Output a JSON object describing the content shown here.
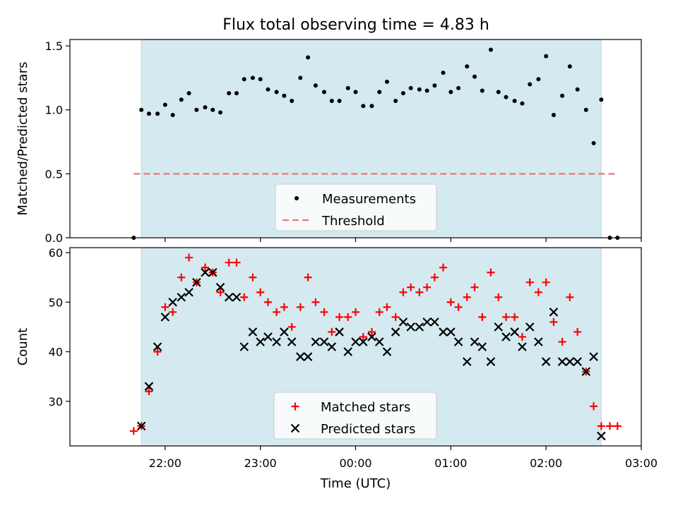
{
  "figure": {
    "title": "Flux total observing time = 4.83 h"
  },
  "chart_data": [
    {
      "type": "scatter",
      "panel": "top",
      "ylabel": "Matched/Predicted stars",
      "xlabel": "",
      "x_unit": "hours after 00:00 UTC",
      "xlim": [
        -3.0,
        3.0
      ],
      "ylim": [
        0.0,
        1.55
      ],
      "yticks": [
        0.0,
        0.5,
        1.0,
        1.5
      ],
      "ytick_labels": [
        "0.0",
        "0.5",
        "1.0",
        "1.5"
      ],
      "shaded_interval": {
        "x": [
          -2.25,
          2.58
        ],
        "color": "#d4eaf0"
      },
      "legend_position": "lower center",
      "series": [
        {
          "name": "Measurements",
          "marker": "dot",
          "color": "#000000",
          "x": [
            -2.33,
            -2.25,
            -2.17,
            -2.08,
            -2.0,
            -1.92,
            -1.83,
            -1.75,
            -1.67,
            -1.58,
            -1.5,
            -1.42,
            -1.33,
            -1.25,
            -1.17,
            -1.08,
            -1.0,
            -0.92,
            -0.83,
            -0.75,
            -0.67,
            -0.58,
            -0.5,
            -0.42,
            -0.33,
            -0.25,
            -0.17,
            -0.08,
            0.0,
            0.08,
            0.17,
            0.25,
            0.33,
            0.42,
            0.5,
            0.58,
            0.67,
            0.75,
            0.83,
            0.92,
            1.0,
            1.08,
            1.17,
            1.25,
            1.33,
            1.42,
            1.5,
            1.58,
            1.67,
            1.75,
            1.83,
            1.92,
            2.0,
            2.08,
            2.17,
            2.25,
            2.33,
            2.42,
            2.5,
            2.58,
            2.67,
            2.75
          ],
          "y": [
            0.0,
            1.0,
            0.97,
            0.97,
            1.04,
            0.96,
            1.08,
            1.13,
            1.0,
            1.02,
            1.0,
            0.98,
            1.13,
            1.13,
            1.24,
            1.25,
            1.24,
            1.16,
            1.14,
            1.11,
            1.07,
            1.25,
            1.41,
            1.19,
            1.14,
            1.07,
            1.07,
            1.17,
            1.14,
            1.03,
            1.03,
            1.14,
            1.22,
            1.07,
            1.13,
            1.17,
            1.16,
            1.15,
            1.19,
            1.29,
            1.14,
            1.17,
            1.34,
            1.26,
            1.15,
            1.47,
            1.14,
            1.1,
            1.07,
            1.05,
            1.2,
            1.24,
            1.42,
            0.96,
            1.11,
            1.34,
            1.16,
            1.0,
            0.74,
            1.08,
            0.0,
            0.0
          ]
        },
        {
          "name": "Threshold",
          "style": "dashed",
          "color": "#f07474",
          "x": [
            -2.33,
            2.75
          ],
          "y": [
            0.5,
            0.5
          ]
        }
      ]
    },
    {
      "type": "scatter",
      "panel": "bottom",
      "ylabel": "Count",
      "xlabel": "Time (UTC)",
      "x_unit": "hours after 00:00 UTC",
      "xlim": [
        -3.0,
        3.0
      ],
      "ylim": [
        21,
        61
      ],
      "xticks": [
        -2,
        -1,
        0,
        1,
        2,
        3
      ],
      "xtick_labels": [
        "22:00",
        "23:00",
        "00:00",
        "01:00",
        "02:00",
        "03:00"
      ],
      "yticks": [
        30,
        40,
        50,
        60
      ],
      "ytick_labels": [
        "30",
        "40",
        "50",
        "60"
      ],
      "shaded_interval": {
        "x": [
          -2.25,
          2.58
        ],
        "color": "#d4eaf0"
      },
      "legend_position": "lower center",
      "series": [
        {
          "name": "Matched stars",
          "marker": "plus",
          "color": "#ff0000",
          "x": [
            -2.33,
            -2.25,
            -2.17,
            -2.08,
            -2.0,
            -1.92,
            -1.83,
            -1.75,
            -1.67,
            -1.58,
            -1.5,
            -1.42,
            -1.33,
            -1.25,
            -1.17,
            -1.08,
            -1.0,
            -0.92,
            -0.83,
            -0.75,
            -0.67,
            -0.58,
            -0.5,
            -0.42,
            -0.33,
            -0.25,
            -0.17,
            -0.08,
            0.0,
            0.08,
            0.17,
            0.25,
            0.33,
            0.42,
            0.5,
            0.58,
            0.67,
            0.75,
            0.83,
            0.92,
            1.0,
            1.08,
            1.17,
            1.25,
            1.33,
            1.42,
            1.5,
            1.58,
            1.67,
            1.75,
            1.83,
            1.92,
            2.0,
            2.08,
            2.17,
            2.25,
            2.33,
            2.42,
            2.5,
            2.58,
            2.67,
            2.75
          ],
          "y": [
            24,
            25,
            32,
            40,
            49,
            48,
            55,
            59,
            54,
            57,
            56,
            52,
            58,
            58,
            51,
            55,
            52,
            50,
            48,
            49,
            45,
            49,
            55,
            50,
            48,
            44,
            47,
            47,
            48,
            43,
            44,
            48,
            49,
            47,
            52,
            53,
            52,
            53,
            55,
            57,
            50,
            49,
            51,
            53,
            47,
            56,
            51,
            47,
            47,
            43,
            54,
            52,
            54,
            46,
            42,
            51,
            44,
            36,
            29,
            25,
            25,
            25
          ]
        },
        {
          "name": "Predicted stars",
          "marker": "x",
          "color": "#000000",
          "x": [
            -2.25,
            -2.17,
            -2.08,
            -2.0,
            -1.92,
            -1.83,
            -1.75,
            -1.67,
            -1.58,
            -1.5,
            -1.42,
            -1.33,
            -1.25,
            -1.17,
            -1.08,
            -1.0,
            -0.92,
            -0.83,
            -0.75,
            -0.67,
            -0.58,
            -0.5,
            -0.42,
            -0.33,
            -0.25,
            -0.17,
            -0.08,
            0.0,
            0.08,
            0.17,
            0.25,
            0.33,
            0.42,
            0.5,
            0.58,
            0.67,
            0.75,
            0.83,
            0.92,
            1.0,
            1.08,
            1.17,
            1.25,
            1.33,
            1.42,
            1.5,
            1.58,
            1.67,
            1.75,
            1.83,
            1.92,
            2.0,
            2.08,
            2.17,
            2.25,
            2.33,
            2.42,
            2.5,
            2.58
          ],
          "y": [
            25,
            33,
            41,
            47,
            50,
            51,
            52,
            54,
            56,
            56,
            53,
            51,
            51,
            41,
            44,
            42,
            43,
            42,
            44,
            42,
            39,
            39,
            42,
            42,
            41,
            44,
            40,
            42,
            42,
            43,
            42,
            40,
            44,
            46,
            45,
            45,
            46,
            46,
            44,
            44,
            42,
            38,
            42,
            41,
            38,
            45,
            43,
            44,
            41,
            45,
            42,
            38,
            48,
            38,
            38,
            38,
            36,
            39,
            23
          ]
        }
      ]
    }
  ]
}
